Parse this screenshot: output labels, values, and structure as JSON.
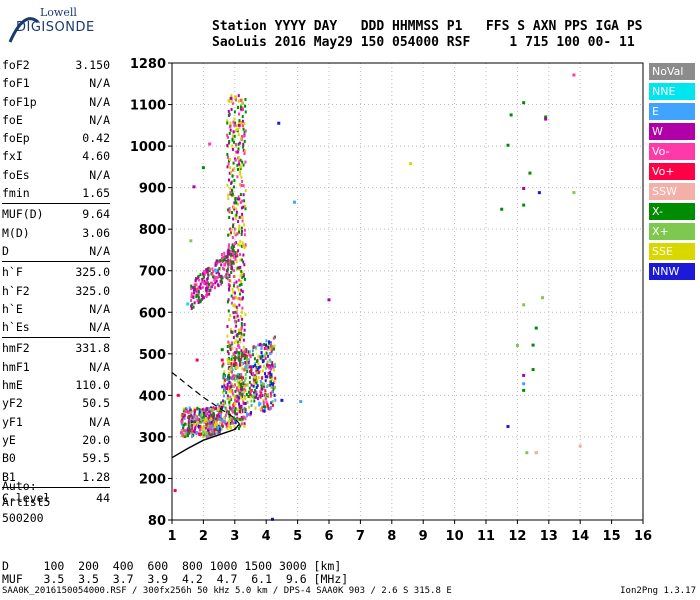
{
  "logo": {
    "line1": "Lowell",
    "line2": "DIGISONDE"
  },
  "header": {
    "labels": "Station YYYY DAY   DDD HHMMSS P1   FFS S AXN PPS IGA PS",
    "values": "SaoLuis 2016 May29 150 054000 RSF     1 715 100 00- 11"
  },
  "params": [
    {
      "k": "foF2",
      "v": "3.150"
    },
    {
      "k": "foF1",
      "v": "N/A"
    },
    {
      "k": "foF1p",
      "v": "N/A"
    },
    {
      "k": "foE",
      "v": "N/A"
    },
    {
      "k": "foEp",
      "v": "0.42"
    },
    {
      "k": "fxI",
      "v": "4.60"
    },
    {
      "k": "foEs",
      "v": "N/A"
    },
    {
      "k": "fmin",
      "v": "1.65"
    },
    {
      "k": "MUF(D)",
      "v": "9.64"
    },
    {
      "k": "M(D)",
      "v": "3.06"
    },
    {
      "k": "D",
      "v": "N/A"
    },
    {
      "k": "h`F",
      "v": "325.0"
    },
    {
      "k": "h`F2",
      "v": "325.0"
    },
    {
      "k": "h`E",
      "v": "N/A"
    },
    {
      "k": "h`Es",
      "v": "N/A"
    },
    {
      "k": "hmF2",
      "v": "331.8"
    },
    {
      "k": "hmF1",
      "v": "N/A"
    },
    {
      "k": "hmE",
      "v": "110.0"
    },
    {
      "k": "yF2",
      "v": "50.5"
    },
    {
      "k": "yF1",
      "v": "N/A"
    },
    {
      "k": "yE",
      "v": "20.0"
    },
    {
      "k": "B0",
      "v": "59.5"
    },
    {
      "k": "B1",
      "v": "1.28"
    },
    {
      "k": "C-level",
      "v": "44"
    }
  ],
  "autoscale": {
    "l1": "Auto:",
    "l2": "Artist5",
    "l3": "500200"
  },
  "bottom": {
    "d_row": "D     100  200  400  600  800 1000 1500 3000 [km]",
    "muf_row": "MUF   3.5  3.5  3.7  3.9  4.2  4.7  6.1  9.6 [MHz]"
  },
  "footer": {
    "left": "SAA0K_2016150054000.RSF / 300fx256h 50 kHz 5.0 km / DPS-4 SAA0K 903 / 2.6 S 315.8 E",
    "right": "Ion2Png 1.3.17"
  },
  "legend": [
    {
      "label": "NoVal",
      "color": "#8c8c8c"
    },
    {
      "label": "NNE",
      "color": "#00e5ee"
    },
    {
      "label": "E",
      "color": "#3fa3ff"
    },
    {
      "label": "W",
      "color": "#b000a8"
    },
    {
      "label": "Vo-",
      "color": "#ff3aa8"
    },
    {
      "label": "Vo+",
      "color": "#ff0044"
    },
    {
      "label": "SSW",
      "color": "#f4b0a8"
    },
    {
      "label": "X-",
      "color": "#008c00"
    },
    {
      "label": "X+",
      "color": "#7ec850"
    },
    {
      "label": "SSE",
      "color": "#d8d800"
    },
    {
      "label": "NNW",
      "color": "#1a1ad8"
    }
  ],
  "chart_data": {
    "type": "scatter",
    "xlim": [
      1,
      16
    ],
    "ylim": [
      80,
      1280
    ],
    "x_ticks": [
      "1",
      "2",
      "3",
      "4",
      "5",
      "6",
      "7",
      "8",
      "9",
      "10",
      "11",
      "12",
      "13",
      "14",
      "15",
      "16"
    ],
    "y_ticks": [
      "80",
      "200",
      "300",
      "400",
      "500",
      "600",
      "700",
      "800",
      "900",
      "1000",
      "1100",
      "1280"
    ],
    "grid": "dotted",
    "series": [
      {
        "name": "X-",
        "color": "#008c00",
        "points": [
          [
            11.8,
            1075
          ],
          [
            12.2,
            1108
          ],
          [
            11.7,
            1002
          ],
          [
            12.4,
            935
          ],
          [
            11.5,
            848
          ],
          [
            12.2,
            858
          ],
          [
            12.6,
            562
          ],
          [
            12.5,
            521
          ],
          [
            12.2,
            412
          ],
          [
            12.5,
            462
          ],
          [
            12.9,
            1070
          ],
          [
            2.0,
            948
          ],
          [
            1.8,
            640
          ],
          [
            2.6,
            510
          ]
        ]
      },
      {
        "name": "X+",
        "color": "#7ec850",
        "points": [
          [
            12.0,
            520
          ],
          [
            12.3,
            262
          ],
          [
            12.6,
            262
          ],
          [
            13.8,
            888
          ],
          [
            12.2,
            618
          ],
          [
            12.8,
            635
          ],
          [
            2.3,
            365
          ],
          [
            1.6,
            772
          ]
        ]
      },
      {
        "name": "W",
        "color": "#b000a8",
        "points": [
          [
            12.9,
            1065
          ],
          [
            12.2,
            898
          ],
          [
            12.2,
            448
          ],
          [
            6.0,
            630
          ],
          [
            2.0,
            635
          ],
          [
            1.7,
            902
          ]
        ]
      },
      {
        "name": "Vo-",
        "color": "#ff3aa8",
        "points": [
          [
            13.8,
            1228
          ],
          [
            2.2,
            1005
          ],
          [
            3.0,
            1050
          ],
          [
            1.3,
            310
          ],
          [
            1.4,
            315
          ]
        ]
      },
      {
        "name": "NNW",
        "color": "#1a1ad8",
        "points": [
          [
            4.4,
            1055
          ],
          [
            4.5,
            388
          ],
          [
            12.7,
            888
          ],
          [
            11.7,
            325
          ],
          [
            4.2,
            428
          ],
          [
            4.0,
            445
          ],
          [
            4.2,
            82
          ]
        ]
      },
      {
        "name": "E",
        "color": "#3fa3ff",
        "points": [
          [
            4.9,
            865
          ],
          [
            5.1,
            385
          ],
          [
            12.2,
            428
          ]
        ]
      },
      {
        "name": "SSE",
        "color": "#d8d800",
        "points": [
          [
            8.6,
            958
          ],
          [
            2.8,
            478
          ],
          [
            3.2,
            540
          ]
        ]
      },
      {
        "name": "SSW",
        "color": "#f4b0a8",
        "points": [
          [
            14.0,
            278
          ],
          [
            12.6,
            262
          ]
        ]
      },
      {
        "name": "Vo+",
        "color": "#ff0044",
        "points": [
          [
            1.1,
            165
          ],
          [
            1.8,
            485
          ],
          [
            2.6,
            485
          ],
          [
            1.2,
            400
          ]
        ]
      },
      {
        "name": "NNE",
        "color": "#00e5ee",
        "points": [
          [
            1.5,
            620
          ],
          [
            2.4,
            700
          ]
        ]
      }
    ],
    "cluster": {
      "name": "O/X trace cluster",
      "xrange": [
        1.0,
        4.5
      ],
      "yrange": [
        280,
        1180
      ]
    },
    "profile_solid": [
      [
        1,
        250
      ],
      [
        1.5,
        272
      ],
      [
        2.0,
        292
      ],
      [
        2.5,
        305
      ],
      [
        3.0,
        318
      ],
      [
        3.15,
        331
      ]
    ],
    "profile_dashed": [
      [
        1,
        455
      ],
      [
        1.5,
        425
      ],
      [
        2.0,
        395
      ],
      [
        2.5,
        370
      ],
      [
        3.0,
        345
      ],
      [
        3.15,
        331
      ]
    ]
  }
}
